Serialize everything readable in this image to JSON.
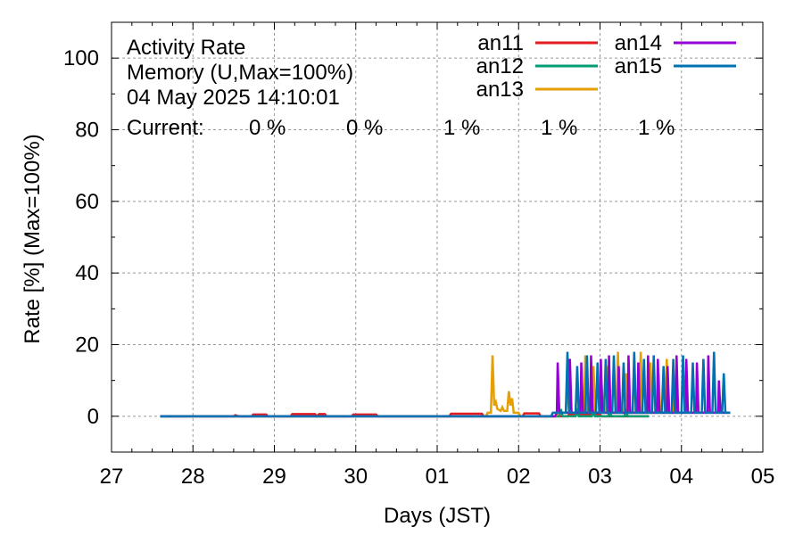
{
  "chart_data": {
    "type": "line",
    "title_lines": [
      "Activity Rate",
      "Memory (U,Max=100%)",
      "04 May 2025 14:10:01"
    ],
    "current_label": "Current:",
    "xlabel": "Days (JST)",
    "ylabel": "Rate [%]  (Max=100%)",
    "x_ticks": [
      "27",
      "28",
      "29",
      "30",
      "01",
      "02",
      "03",
      "04",
      "05"
    ],
    "y_ticks": [
      0,
      20,
      40,
      60,
      80,
      100
    ],
    "xlim": [
      0,
      8
    ],
    "ylim": [
      -10,
      110
    ],
    "grid": true,
    "legend_position": "top-right",
    "series": [
      {
        "name": "an11",
        "color": "#e41a1c",
        "current": "0 %",
        "points": [
          [
            0.6,
            0
          ],
          [
            1.5,
            0
          ],
          [
            1.52,
            0.3
          ],
          [
            1.56,
            0
          ],
          [
            1.72,
            0
          ],
          [
            1.74,
            0.5
          ],
          [
            1.9,
            0.5
          ],
          [
            1.92,
            0
          ],
          [
            2.2,
            0
          ],
          [
            2.22,
            0.6
          ],
          [
            2.5,
            0.6
          ],
          [
            2.52,
            0
          ],
          [
            2.55,
            0.6
          ],
          [
            2.62,
            0.6
          ],
          [
            2.64,
            0
          ],
          [
            2.95,
            0
          ],
          [
            2.97,
            0.5
          ],
          [
            3.25,
            0.5
          ],
          [
            3.27,
            0
          ],
          [
            4.15,
            0
          ],
          [
            4.17,
            0.7
          ],
          [
            4.55,
            0.7
          ],
          [
            4.57,
            0
          ],
          [
            5.05,
            0
          ],
          [
            5.07,
            0.8
          ],
          [
            5.25,
            0.8
          ],
          [
            5.27,
            0
          ],
          [
            5.6,
            0
          ],
          [
            5.62,
            0.5
          ],
          [
            6.0,
            0.5
          ],
          [
            6.02,
            0
          ],
          [
            6.6,
            0
          ]
        ]
      },
      {
        "name": "an12",
        "color": "#009e73",
        "current": "0 %",
        "points": [
          [
            0.6,
            0
          ],
          [
            5.5,
            0
          ],
          [
            5.52,
            2
          ],
          [
            5.54,
            0
          ],
          [
            5.7,
            0
          ],
          [
            5.72,
            1.5
          ],
          [
            5.74,
            0
          ],
          [
            5.9,
            0
          ],
          [
            5.92,
            2
          ],
          [
            5.94,
            0
          ],
          [
            6.1,
            0
          ],
          [
            6.12,
            1.5
          ],
          [
            6.14,
            0
          ],
          [
            6.3,
            0
          ],
          [
            6.32,
            2
          ],
          [
            6.34,
            0
          ],
          [
            6.6,
            0
          ]
        ]
      },
      {
        "name": "an13",
        "color": "#e69f00",
        "current": "1 %",
        "points": [
          [
            0.6,
            0
          ],
          [
            4.6,
            0
          ],
          [
            4.62,
            1
          ],
          [
            4.66,
            1
          ],
          [
            4.68,
            17
          ],
          [
            4.7,
            3
          ],
          [
            4.72,
            4
          ],
          [
            4.74,
            2
          ],
          [
            4.78,
            1.5
          ],
          [
            4.8,
            2.5
          ],
          [
            4.82,
            1.5
          ],
          [
            4.86,
            1.5
          ],
          [
            4.88,
            7
          ],
          [
            4.9,
            3
          ],
          [
            4.92,
            5
          ],
          [
            4.94,
            1
          ],
          [
            5.0,
            1
          ],
          [
            5.02,
            0
          ],
          [
            5.45,
            0
          ],
          [
            5.5,
            1
          ],
          [
            5.58,
            1
          ],
          [
            5.6,
            10
          ],
          [
            5.62,
            1
          ],
          [
            5.7,
            1
          ],
          [
            5.72,
            12
          ],
          [
            5.74,
            1
          ],
          [
            5.8,
            1
          ],
          [
            5.82,
            17
          ],
          [
            5.84,
            1
          ],
          [
            5.9,
            1
          ],
          [
            5.92,
            14
          ],
          [
            5.94,
            1
          ],
          [
            6.0,
            1
          ],
          [
            6.02,
            9
          ],
          [
            6.04,
            1
          ],
          [
            6.08,
            1
          ],
          [
            6.1,
            14
          ],
          [
            6.12,
            1
          ],
          [
            6.2,
            1
          ],
          [
            6.22,
            18
          ],
          [
            6.24,
            1
          ],
          [
            6.3,
            1
          ],
          [
            6.32,
            12
          ],
          [
            6.34,
            1
          ],
          [
            6.4,
            1
          ],
          [
            6.42,
            16
          ],
          [
            6.44,
            1
          ],
          [
            6.48,
            1
          ],
          [
            6.5,
            18
          ],
          [
            6.52,
            1
          ],
          [
            6.6,
            1
          ],
          [
            6.62,
            15
          ],
          [
            6.64,
            1
          ],
          [
            6.7,
            1
          ],
          [
            6.72,
            12
          ],
          [
            6.74,
            1
          ],
          [
            6.8,
            1
          ],
          [
            6.82,
            16
          ],
          [
            6.84,
            1
          ],
          [
            6.9,
            1
          ],
          [
            6.92,
            9
          ],
          [
            6.94,
            1
          ],
          [
            7.0,
            1
          ]
        ]
      },
      {
        "name": "an14",
        "color": "#9400d3",
        "current": "1 %",
        "points": [
          [
            0.6,
            0
          ],
          [
            5.45,
            0
          ],
          [
            5.47,
            1
          ],
          [
            5.48,
            15
          ],
          [
            5.5,
            1
          ],
          [
            5.62,
            1
          ],
          [
            5.63,
            16
          ],
          [
            5.65,
            1
          ],
          [
            5.76,
            1
          ],
          [
            5.77,
            15
          ],
          [
            5.79,
            1
          ],
          [
            5.88,
            1
          ],
          [
            5.89,
            17
          ],
          [
            5.91,
            1
          ],
          [
            6.0,
            1
          ],
          [
            6.01,
            16
          ],
          [
            6.03,
            1
          ],
          [
            6.1,
            1
          ],
          [
            6.11,
            17
          ],
          [
            6.13,
            1
          ],
          [
            6.22,
            1
          ],
          [
            6.23,
            14
          ],
          [
            6.25,
            1
          ],
          [
            6.34,
            1
          ],
          [
            6.35,
            17
          ],
          [
            6.37,
            1
          ],
          [
            6.46,
            1
          ],
          [
            6.47,
            15
          ],
          [
            6.49,
            1
          ],
          [
            6.58,
            1
          ],
          [
            6.59,
            17
          ],
          [
            6.61,
            1
          ],
          [
            6.7,
            1
          ],
          [
            6.71,
            16
          ],
          [
            6.73,
            1
          ],
          [
            6.82,
            1
          ],
          [
            6.83,
            14
          ],
          [
            6.85,
            1
          ],
          [
            6.93,
            1
          ],
          [
            6.94,
            17
          ],
          [
            6.96,
            1
          ],
          [
            7.05,
            1
          ],
          [
            7.06,
            16
          ],
          [
            7.08,
            1
          ],
          [
            7.18,
            1
          ],
          [
            7.19,
            15
          ],
          [
            7.21,
            1
          ],
          [
            7.32,
            1
          ],
          [
            7.33,
            17
          ],
          [
            7.35,
            1
          ],
          [
            7.45,
            1
          ],
          [
            7.46,
            10
          ],
          [
            7.48,
            1
          ],
          [
            7.6,
            1
          ]
        ]
      },
      {
        "name": "an15",
        "color": "#0072b2",
        "current": "1 %",
        "points": [
          [
            0.6,
            0
          ],
          [
            5.4,
            0
          ],
          [
            5.42,
            1
          ],
          [
            5.58,
            1
          ],
          [
            5.6,
            18
          ],
          [
            5.62,
            1
          ],
          [
            5.7,
            1
          ],
          [
            5.72,
            14
          ],
          [
            5.74,
            1
          ],
          [
            5.82,
            1
          ],
          [
            5.84,
            17
          ],
          [
            5.86,
            1
          ],
          [
            5.95,
            1
          ],
          [
            5.97,
            15
          ],
          [
            5.99,
            1
          ],
          [
            6.05,
            1
          ],
          [
            6.07,
            16
          ],
          [
            6.09,
            1
          ],
          [
            6.15,
            1
          ],
          [
            6.17,
            17
          ],
          [
            6.19,
            1
          ],
          [
            6.27,
            1
          ],
          [
            6.29,
            15
          ],
          [
            6.31,
            1
          ],
          [
            6.4,
            1
          ],
          [
            6.42,
            18
          ],
          [
            6.44,
            1
          ],
          [
            6.52,
            1
          ],
          [
            6.54,
            16
          ],
          [
            6.56,
            1
          ],
          [
            6.64,
            1
          ],
          [
            6.66,
            17
          ],
          [
            6.68,
            1
          ],
          [
            6.76,
            1
          ],
          [
            6.78,
            14
          ],
          [
            6.8,
            1
          ],
          [
            6.88,
            1
          ],
          [
            6.9,
            16
          ],
          [
            6.92,
            1
          ],
          [
            7.0,
            1
          ],
          [
            7.02,
            17
          ],
          [
            7.04,
            1
          ],
          [
            7.12,
            1
          ],
          [
            7.14,
            15
          ],
          [
            7.16,
            1
          ],
          [
            7.25,
            1
          ],
          [
            7.27,
            16
          ],
          [
            7.29,
            1
          ],
          [
            7.38,
            1
          ],
          [
            7.4,
            18
          ],
          [
            7.42,
            1
          ],
          [
            7.5,
            1
          ],
          [
            7.52,
            12
          ],
          [
            7.54,
            1
          ],
          [
            7.6,
            1
          ]
        ]
      }
    ]
  }
}
